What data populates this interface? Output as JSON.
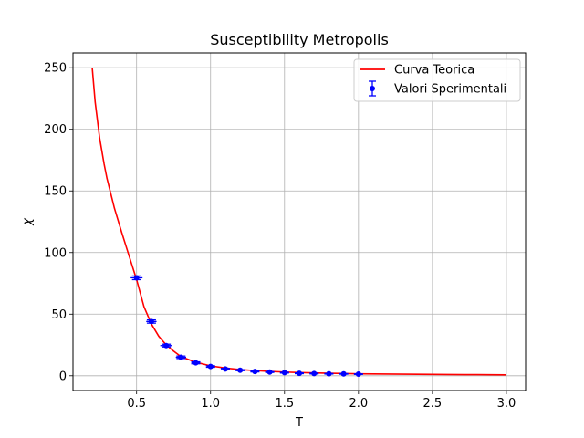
{
  "chart_data": {
    "type": "line",
    "title": "Susceptibility Metropolis",
    "xlabel": "T",
    "ylabel": "χ",
    "xlim": [
      0.07,
      3.13
    ],
    "ylim": [
      -12,
      262
    ],
    "xticks": [
      0.5,
      1.0,
      1.5,
      2.0,
      2.5,
      3.0
    ],
    "xtick_labels": [
      "0.5",
      "1.0",
      "1.5",
      "2.0",
      "2.5",
      "3.0"
    ],
    "yticks": [
      0,
      50,
      100,
      150,
      200,
      250
    ],
    "ytick_labels": [
      "0",
      "50",
      "100",
      "150",
      "200",
      "250"
    ],
    "grid": true,
    "legend_position": "top-right",
    "series": [
      {
        "name": "Curva Teorica",
        "kind": "line",
        "color": "#ff0000",
        "x": [
          0.2,
          0.22,
          0.25,
          0.28,
          0.3,
          0.35,
          0.4,
          0.45,
          0.5,
          0.55,
          0.6,
          0.65,
          0.7,
          0.75,
          0.8,
          0.9,
          1.0,
          1.1,
          1.2,
          1.3,
          1.4,
          1.5,
          1.6,
          1.7,
          1.8,
          1.9,
          2.0,
          2.2,
          2.4,
          2.6,
          2.8,
          3.0
        ],
        "y": [
          250,
          222,
          193,
          172,
          160,
          136,
          116,
          97,
          78,
          56,
          42,
          32,
          25,
          20,
          15.5,
          11,
          8,
          6.3,
          5,
          4.2,
          3.5,
          3,
          2.6,
          2.3,
          2,
          1.8,
          1.6,
          1.4,
          1.2,
          1.0,
          0.9,
          0.7
        ]
      },
      {
        "name": "Valori Sperimentali",
        "kind": "errorbar",
        "color": "#0000ff",
        "x": [
          0.5,
          0.6,
          0.7,
          0.8,
          0.9,
          1.0,
          1.1,
          1.2,
          1.3,
          1.4,
          1.5,
          1.6,
          1.7,
          1.8,
          1.9,
          2.0
        ],
        "y": [
          79.5,
          44,
          24.5,
          15,
          10.5,
          7.5,
          5.5,
          4.5,
          3.5,
          3,
          2.5,
          2,
          1.8,
          1.6,
          1.5,
          1.3
        ],
        "yerr": [
          1.5,
          1.3,
          1.1,
          1,
          0.8,
          0.6,
          0.5,
          0.4,
          0.4,
          0.3,
          0.3,
          0.3,
          0.3,
          0.2,
          0.2,
          0.2
        ],
        "xerr": [
          0.04,
          0.035,
          0.04,
          0.035,
          0.03,
          0.025,
          0.02,
          0.02,
          0.02,
          0.02,
          0.02,
          0.02,
          0.02,
          0.02,
          0.02,
          0.02
        ]
      }
    ]
  }
}
